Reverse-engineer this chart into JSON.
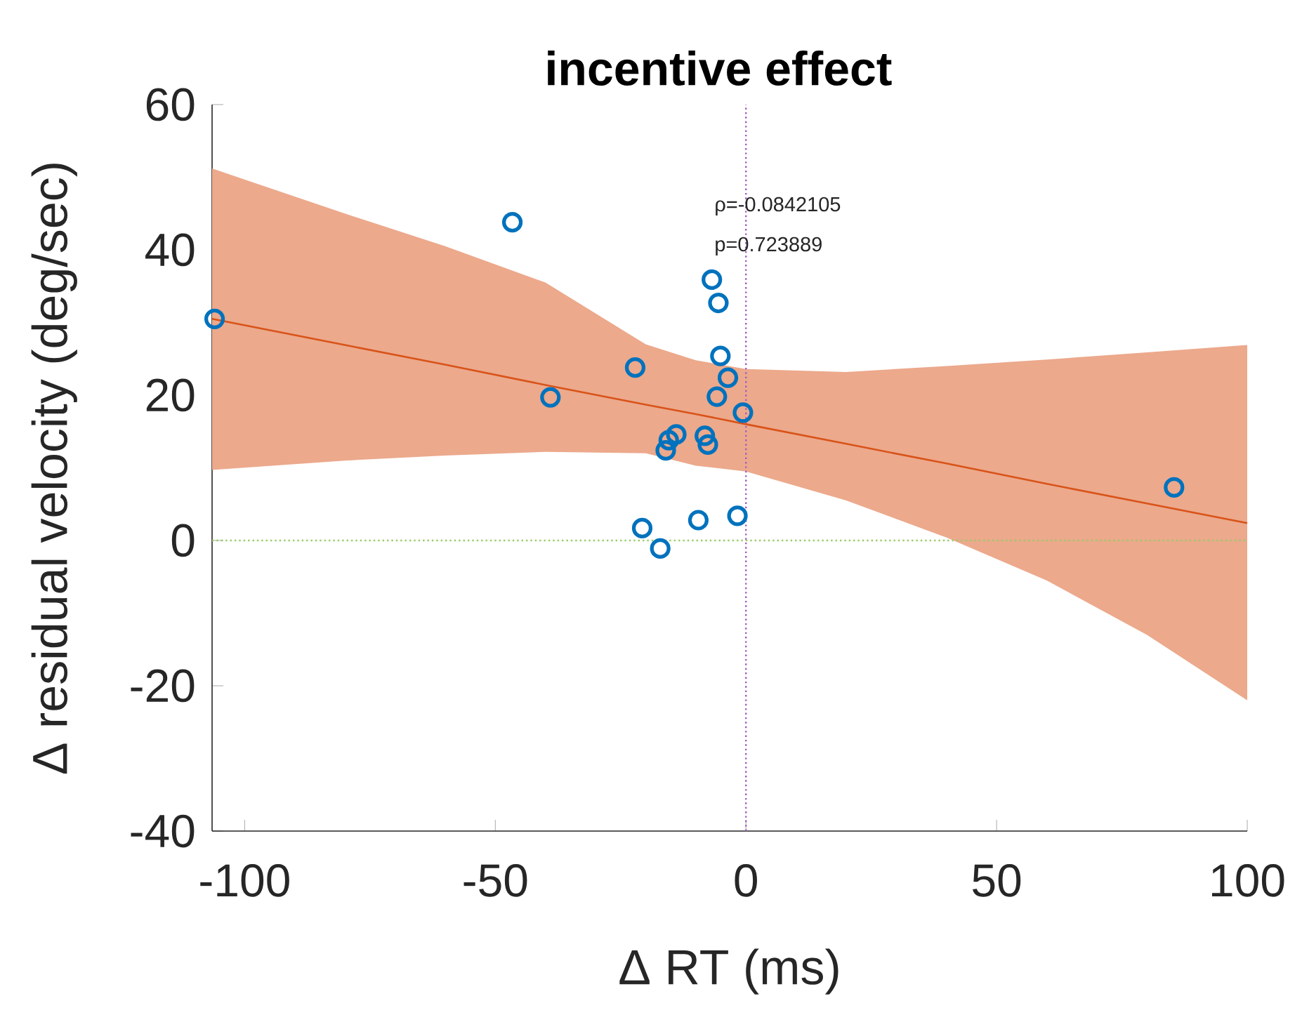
{
  "chart_data": {
    "type": "scatter",
    "title": "incentive effect",
    "xlabel": "Δ RT (ms)",
    "ylabel": "Δ residual velocity (deg/sec)",
    "xlim": [
      -106.5,
      100
    ],
    "ylim": [
      -40,
      60
    ],
    "xticks": [
      -100,
      -50,
      0,
      50,
      100
    ],
    "yticks": [
      -40,
      -20,
      0,
      20,
      40,
      60
    ],
    "series": [
      {
        "color": "#0072bd",
        "marker": "circle",
        "x": [
          -106,
          -46.6,
          -6.8,
          -5.5,
          -5.1,
          -3.6,
          -5.8,
          -0.6,
          -22.1,
          -39.0,
          -13.9,
          -15.4,
          -16.0,
          -8.2,
          -7.6,
          -20.7,
          -17.1,
          -9.5,
          -1.7,
          85.4
        ],
        "values": [
          30.5,
          43.8,
          35.9,
          32.7,
          25.4,
          22.4,
          19.8,
          17.6,
          23.8,
          19.7,
          14.6,
          13.8,
          12.4,
          14.4,
          13.2,
          1.7,
          -1.1,
          2.8,
          3.4,
          7.3
        ]
      },
      {
        "type": "line",
        "color": "#d95319",
        "marker": "none",
        "x": [
          -106.5,
          -80,
          -60,
          -40,
          -20,
          -10,
          0,
          20,
          40,
          60,
          80,
          100
        ],
        "values": [
          30.5,
          26.9,
          24.2,
          21.4,
          18.7,
          17.4,
          16.0,
          13.3,
          10.6,
          7.8,
          5.1,
          2.4
        ],
        "upper": [
          51.2,
          45,
          40.5,
          35.5,
          27,
          24.8,
          23.6,
          23.2,
          24,
          24.9,
          25.9,
          26.9
        ],
        "lower": [
          9.7,
          11,
          11.7,
          12.2,
          12,
          10.3,
          9.5,
          5.5,
          0.4,
          -5.5,
          -13,
          -22
        ]
      }
    ],
    "ref_lines": [
      {
        "axis": "x",
        "value": 0,
        "color": "#a25fc4",
        "line_style": "dotted"
      },
      {
        "axis": "y",
        "value": 0,
        "color": "#9bcb6a",
        "line_style": "dotted"
      }
    ],
    "annotations": [
      "ρ=-0.0842105",
      "p=0.723889"
    ],
    "grid": false
  }
}
